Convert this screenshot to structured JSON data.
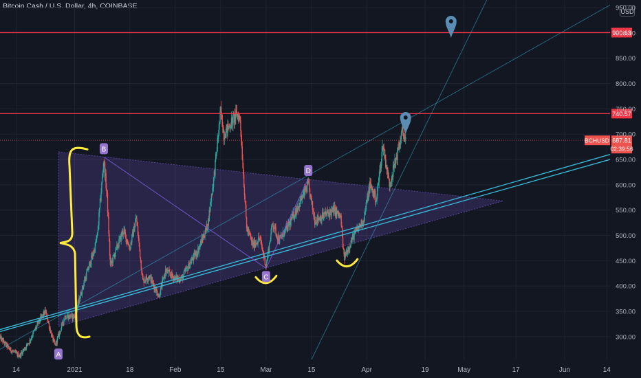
{
  "header": {
    "title": "Bitcoin Cash / U.S. Dollar, 4h, COINBASE",
    "currency_button": "USD"
  },
  "colors": {
    "background": "#131722",
    "grid": "#1f2330",
    "text": "#b2b5be",
    "candle_up": "#26a69a",
    "candle_down": "#ef5350",
    "resistance": "#f23645",
    "trendline": "#38b6d3",
    "triangle": "#7b5cd6",
    "marker": "#9575cd",
    "annotation": "#ffeb3b",
    "pin": "#5b8cb2"
  },
  "chart_data": {
    "type": "candlestick",
    "symbol": "BCHUSD",
    "timeframe": "4h",
    "exchange": "COINBASE",
    "y_axis": {
      "scale": "linear",
      "range": [
        255,
        965
      ],
      "ticks": [
        300,
        350,
        400,
        450,
        500,
        550,
        600,
        650,
        700,
        750,
        800,
        850,
        900,
        950
      ],
      "tick_labels": [
        "300.00",
        "350.00",
        "400.00",
        "450.00",
        "500.00",
        "550.00",
        "600.00",
        "650.00",
        "700.00",
        "750.00",
        "800.00",
        "850.00",
        "900.00",
        "950.00"
      ]
    },
    "x_axis": {
      "range": [
        "2020-12-09",
        "2021-06-15"
      ],
      "ticks": [
        {
          "date": "2020-12-14",
          "label": "14"
        },
        {
          "date": "2021-01-01",
          "label": "2021"
        },
        {
          "date": "2021-01-18",
          "label": "18"
        },
        {
          "date": "2021-02-01",
          "label": "Feb"
        },
        {
          "date": "2021-02-15",
          "label": "15"
        },
        {
          "date": "2021-03-01",
          "label": "Mar"
        },
        {
          "date": "2021-03-15",
          "label": "15"
        },
        {
          "date": "2021-04-01",
          "label": "Apr"
        },
        {
          "date": "2021-04-19",
          "label": "19"
        },
        {
          "date": "2021-05-01",
          "label": "May"
        },
        {
          "date": "2021-05-17",
          "label": "17"
        },
        {
          "date": "2021-06-01",
          "label": "Jun"
        },
        {
          "date": "2021-06-14",
          "label": "14"
        }
      ]
    },
    "price_path": [
      [
        "2020-12-09",
        298
      ],
      [
        "2020-12-12",
        275
      ],
      [
        "2020-12-15",
        262
      ],
      [
        "2020-12-18",
        290
      ],
      [
        "2020-12-21",
        330
      ],
      [
        "2020-12-23",
        350
      ],
      [
        "2020-12-25",
        300
      ],
      [
        "2020-12-26",
        282
      ],
      [
        "2020-12-29",
        340
      ],
      [
        "2021-01-01",
        340
      ],
      [
        "2021-01-04",
        410
      ],
      [
        "2021-01-07",
        470
      ],
      [
        "2021-01-08",
        500
      ],
      [
        "2021-01-10",
        650
      ],
      [
        "2021-01-11",
        575
      ],
      [
        "2021-01-12",
        440
      ],
      [
        "2021-01-16",
        510
      ],
      [
        "2021-01-18",
        475
      ],
      [
        "2021-01-20",
        535
      ],
      [
        "2021-01-22",
        410
      ],
      [
        "2021-01-24",
        420
      ],
      [
        "2021-01-27",
        380
      ],
      [
        "2021-01-29",
        430
      ],
      [
        "2021-02-01",
        415
      ],
      [
        "2021-02-03",
        415
      ],
      [
        "2021-02-06",
        450
      ],
      [
        "2021-02-08",
        470
      ],
      [
        "2021-02-11",
        520
      ],
      [
        "2021-02-13",
        620
      ],
      [
        "2021-02-15",
        745
      ],
      [
        "2021-02-16",
        700
      ],
      [
        "2021-02-18",
        720
      ],
      [
        "2021-02-20",
        740
      ],
      [
        "2021-02-21",
        730
      ],
      [
        "2021-02-23",
        515
      ],
      [
        "2021-02-25",
        480
      ],
      [
        "2021-02-27",
        495
      ],
      [
        "2021-03-01",
        440
      ],
      [
        "2021-03-03",
        525
      ],
      [
        "2021-03-05",
        490
      ],
      [
        "2021-03-08",
        520
      ],
      [
        "2021-03-11",
        560
      ],
      [
        "2021-03-14",
        600
      ],
      [
        "2021-03-16",
        530
      ],
      [
        "2021-03-19",
        540
      ],
      [
        "2021-03-22",
        550
      ],
      [
        "2021-03-24",
        535
      ],
      [
        "2021-03-25",
        455
      ],
      [
        "2021-03-28",
        500
      ],
      [
        "2021-03-31",
        530
      ],
      [
        "2021-04-02",
        600
      ],
      [
        "2021-04-04",
        570
      ],
      [
        "2021-04-06",
        680
      ],
      [
        "2021-04-08",
        600
      ],
      [
        "2021-04-10",
        650
      ],
      [
        "2021-04-12",
        705
      ],
      [
        "2021-04-13",
        688
      ]
    ],
    "horizontal_levels": [
      {
        "value": 900.63,
        "label": "900.63"
      },
      {
        "value": 740.57,
        "label": "740.57"
      }
    ],
    "last_price": {
      "symbol": "BCHUSD",
      "value": 687.81,
      "label": "687.81",
      "countdown": "02:39:56"
    },
    "trendlines": [
      {
        "name": "long-rising-line",
        "from": [
          "2020-12-09",
          275
        ],
        "to": [
          "2021-06-15",
          955
        ]
      },
      {
        "name": "support-line-1",
        "from": [
          "2020-12-09",
          310
        ],
        "to": [
          "2021-06-15",
          650
        ]
      },
      {
        "name": "support-line-2",
        "from": [
          "2020-12-09",
          314
        ],
        "to": [
          "2021-06-15",
          660
        ]
      },
      {
        "name": "steep-projection-line",
        "from": [
          "2021-03-15",
          255
        ],
        "to": [
          "2021-05-08",
          965
        ]
      }
    ],
    "triangle": [
      [
        "2020-12-27",
        665
      ],
      [
        "2021-05-13",
        568
      ],
      [
        "2020-12-27",
        320
      ]
    ],
    "pattern_points": [
      {
        "label": "A",
        "date": "2020-12-27",
        "price": 282
      },
      {
        "label": "B",
        "date": "2021-01-10",
        "price": 655
      },
      {
        "label": "C",
        "date": "2021-03-01",
        "price": 435
      },
      {
        "label": "D",
        "date": "2021-03-14",
        "price": 612
      }
    ],
    "pattern_lines": [
      [
        [
          "2021-01-10",
          655
        ],
        [
          "2021-03-01",
          435
        ]
      ],
      [
        [
          "2021-03-01",
          435
        ],
        [
          "2021-03-14",
          612
        ]
      ]
    ],
    "pins": [
      {
        "name": "upper-pin",
        "date": "2021-04-27",
        "price": 912
      },
      {
        "name": "lower-pin",
        "date": "2021-04-13",
        "price": 722
      }
    ],
    "annotations": [
      {
        "name": "bracket",
        "shape": "brace",
        "date": "2020-12-30",
        "from": 670,
        "to": 300
      },
      {
        "name": "smile-c",
        "shape": "arc",
        "date": "2021-03-01",
        "price": 412
      },
      {
        "name": "smile-d",
        "shape": "arc",
        "date": "2021-03-26",
        "price": 445
      }
    ]
  }
}
